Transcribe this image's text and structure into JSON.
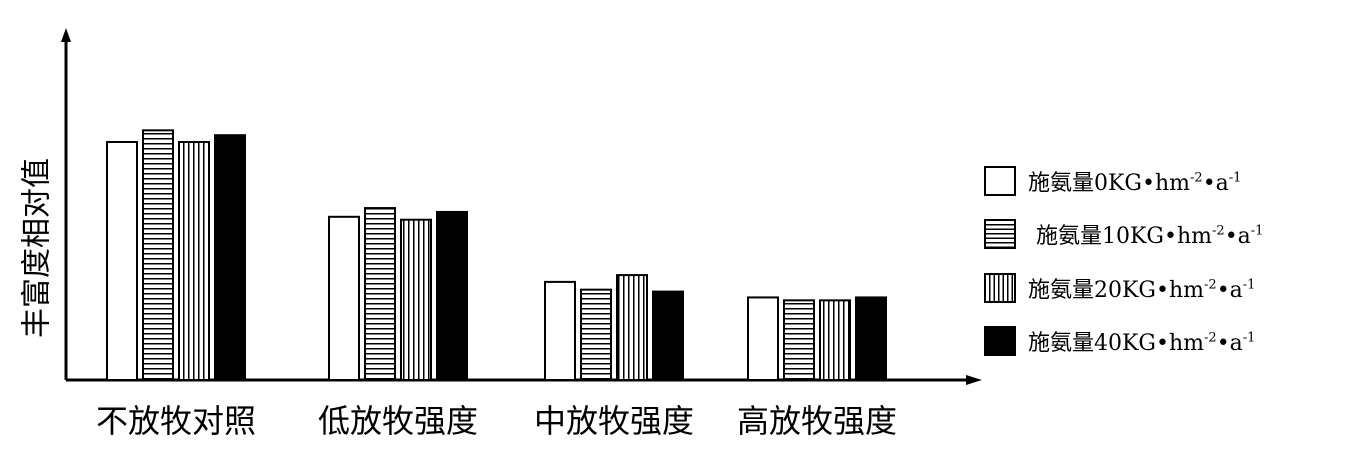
{
  "chart_data": {
    "type": "bar",
    "title": "",
    "xlabel": "",
    "ylabel": "丰富度相对值",
    "categories": [
      "不放牧对照",
      "低放牧强度",
      "中放牧强度",
      "高放牧强度"
    ],
    "series": [
      {
        "name": "施氨量0KG•hm⁻²•a⁻¹",
        "values": [
          2.45,
          1.68,
          1.01,
          0.85
        ],
        "pattern": "white"
      },
      {
        "name": "施氨量10KG•hm⁻²•a⁻¹",
        "values": [
          2.57,
          1.77,
          0.93,
          0.82
        ],
        "pattern": "horizontal"
      },
      {
        "name": "施氨量20KG•hm⁻²•a⁻¹",
        "values": [
          2.45,
          1.65,
          1.08,
          0.82
        ],
        "pattern": "vertical"
      },
      {
        "name": "施氨量40KG•hm⁻²•a⁻¹",
        "values": [
          2.52,
          1.73,
          0.91,
          0.85
        ],
        "pattern": "black"
      }
    ],
    "ylim": [
      0,
      3.5
    ],
    "grid": false,
    "legend_position": "right"
  },
  "legend": {
    "items": [
      {
        "prefix": "施氨量0KG•hm",
        "exp1": "-2",
        "mid": "•a",
        "exp2": "-1"
      },
      {
        "prefix": "施氨量10KG•hm",
        "exp1": "-2",
        "mid": "•a",
        "exp2": "-1"
      },
      {
        "prefix": "施氨量20KG•hm",
        "exp1": "-2",
        "mid": "•a",
        "exp2": "-1"
      },
      {
        "prefix": "施氨量40KG•hm",
        "exp1": "-2",
        "mid": "•a",
        "exp2": "-1"
      }
    ]
  }
}
